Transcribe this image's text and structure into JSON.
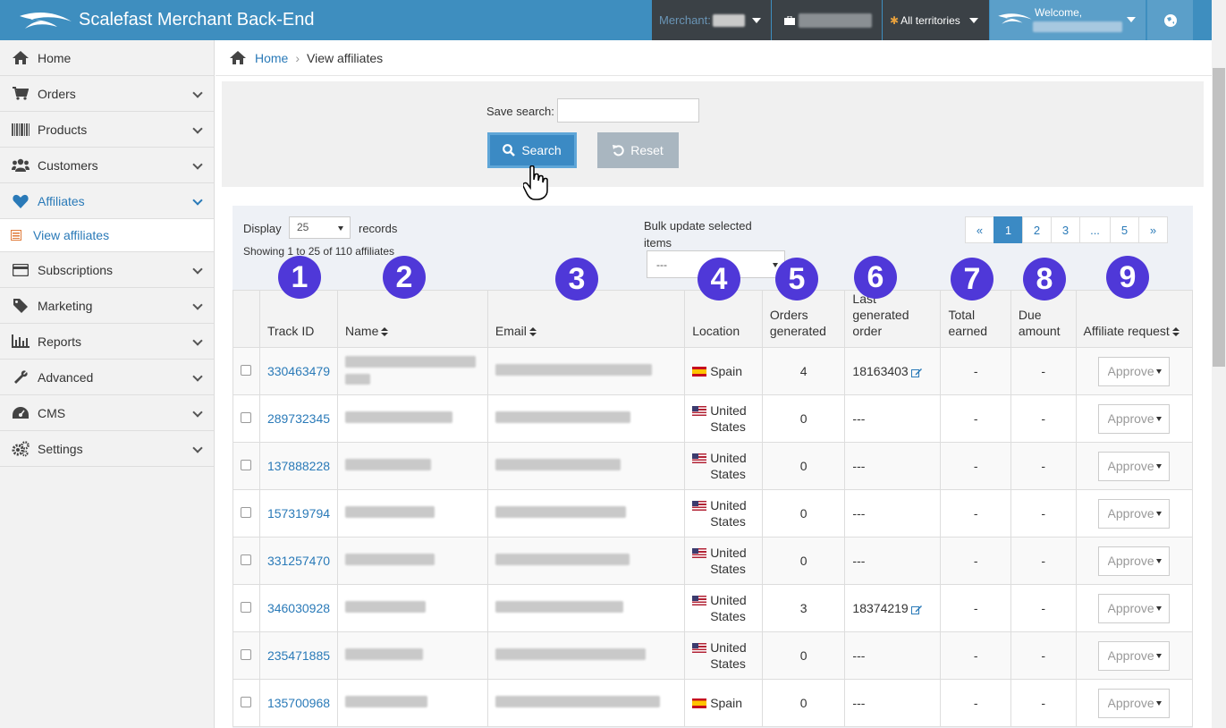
{
  "app": {
    "title": "Scalefast Merchant Back-End"
  },
  "topbar": {
    "merchant_label": "Merchant:",
    "territories": "All territories",
    "welcome": "Welcome,"
  },
  "sidebar": {
    "items": [
      {
        "label": "Home",
        "icon": "home-icon"
      },
      {
        "label": "Orders",
        "icon": "cart-icon"
      },
      {
        "label": "Products",
        "icon": "barcode-icon"
      },
      {
        "label": "Customers",
        "icon": "users-icon"
      },
      {
        "label": "Affiliates",
        "icon": "heart-icon"
      },
      {
        "label": "View affiliates",
        "icon": "list-icon"
      },
      {
        "label": "Subscriptions",
        "icon": "card-icon"
      },
      {
        "label": "Marketing",
        "icon": "tag-icon"
      },
      {
        "label": "Reports",
        "icon": "chart-icon"
      },
      {
        "label": "Advanced",
        "icon": "wrench-icon"
      },
      {
        "label": "CMS",
        "icon": "dashboard-icon"
      },
      {
        "label": "Settings",
        "icon": "gears-icon"
      }
    ]
  },
  "breadcrumb": {
    "home": "Home",
    "sep": "›",
    "current": "View affiliates"
  },
  "search": {
    "save_label": "Save search:",
    "save_value": "",
    "search_btn": "Search",
    "reset_btn": "Reset"
  },
  "results": {
    "display_label": "Display",
    "display_value": "25",
    "records_label": "records",
    "showing": "Showing 1 to 25 of 110 affiliates",
    "bulk_label": "Bulk update selected items",
    "bulk_value": "---",
    "pages": [
      "«",
      "1",
      "2",
      "3",
      "...",
      "5",
      "»"
    ]
  },
  "badges": [
    "1",
    "2",
    "3",
    "4",
    "5",
    "6",
    "7",
    "8",
    "9"
  ],
  "table": {
    "headers": [
      "Track ID",
      "Name",
      "Email",
      "Location",
      "Orders generated",
      "Last generated order",
      "Total earned",
      "Due amount",
      "Affiliate request"
    ],
    "rows": [
      {
        "track": "330463479",
        "location": "Spain",
        "flag": "es",
        "orders": "4",
        "last": "18163403",
        "total": "-",
        "due": "-",
        "request": "Approve"
      },
      {
        "track": "289732345",
        "location": "United States",
        "flag": "us",
        "orders": "0",
        "last": "---",
        "total": "-",
        "due": "-",
        "request": "Approve"
      },
      {
        "track": "137888228",
        "location": "United States",
        "flag": "us",
        "orders": "0",
        "last": "---",
        "total": "-",
        "due": "-",
        "request": "Approve"
      },
      {
        "track": "157319794",
        "location": "United States",
        "flag": "us",
        "orders": "0",
        "last": "---",
        "total": "-",
        "due": "-",
        "request": "Approve"
      },
      {
        "track": "331257470",
        "location": "United States",
        "flag": "us",
        "orders": "0",
        "last": "---",
        "total": "-",
        "due": "-",
        "request": "Approve"
      },
      {
        "track": "346030928",
        "location": "United States",
        "flag": "us",
        "orders": "3",
        "last": "18374219",
        "total": "-",
        "due": "-",
        "request": "Approve"
      },
      {
        "track": "235471885",
        "location": "United States",
        "flag": "us",
        "orders": "0",
        "last": "---",
        "total": "-",
        "due": "-",
        "request": "Approve"
      },
      {
        "track": "135700968",
        "location": "Spain",
        "flag": "es",
        "orders": "0",
        "last": "---",
        "total": "-",
        "due": "-",
        "request": "Approve"
      }
    ]
  }
}
